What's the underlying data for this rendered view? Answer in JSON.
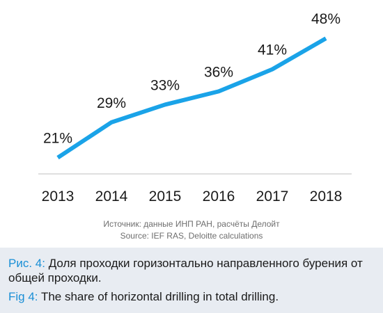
{
  "chart_data": {
    "type": "line",
    "categories": [
      "2013",
      "2014",
      "2015",
      "2016",
      "2017",
      "2018"
    ],
    "series": [
      {
        "values": [
          21,
          29,
          33,
          36,
          41,
          48
        ],
        "labels": [
          "21%",
          "29%",
          "33%",
          "36%",
          "41%",
          "48%"
        ]
      }
    ],
    "ylim": [
      0,
      52
    ],
    "grid": false,
    "line_color": "#1aa3e8"
  },
  "source": {
    "line_ru": "Источник: данные ИНП РАН, расчёты Делойт",
    "line_en": "Source: IEF RAS, Deloitte calculations"
  },
  "caption": {
    "ru_prefix": "Рис. 4:",
    "ru_text": " Доля проходки горизонтально направленного бурения от общей проходки.",
    "en_prefix": "Fig 4:",
    "en_text": " The share of horizontal drilling in total drilling."
  },
  "colors": {
    "accent_text": "#1a8fd6",
    "caption_bg": "#e8ecf2",
    "axis": "#bfbfbf"
  }
}
